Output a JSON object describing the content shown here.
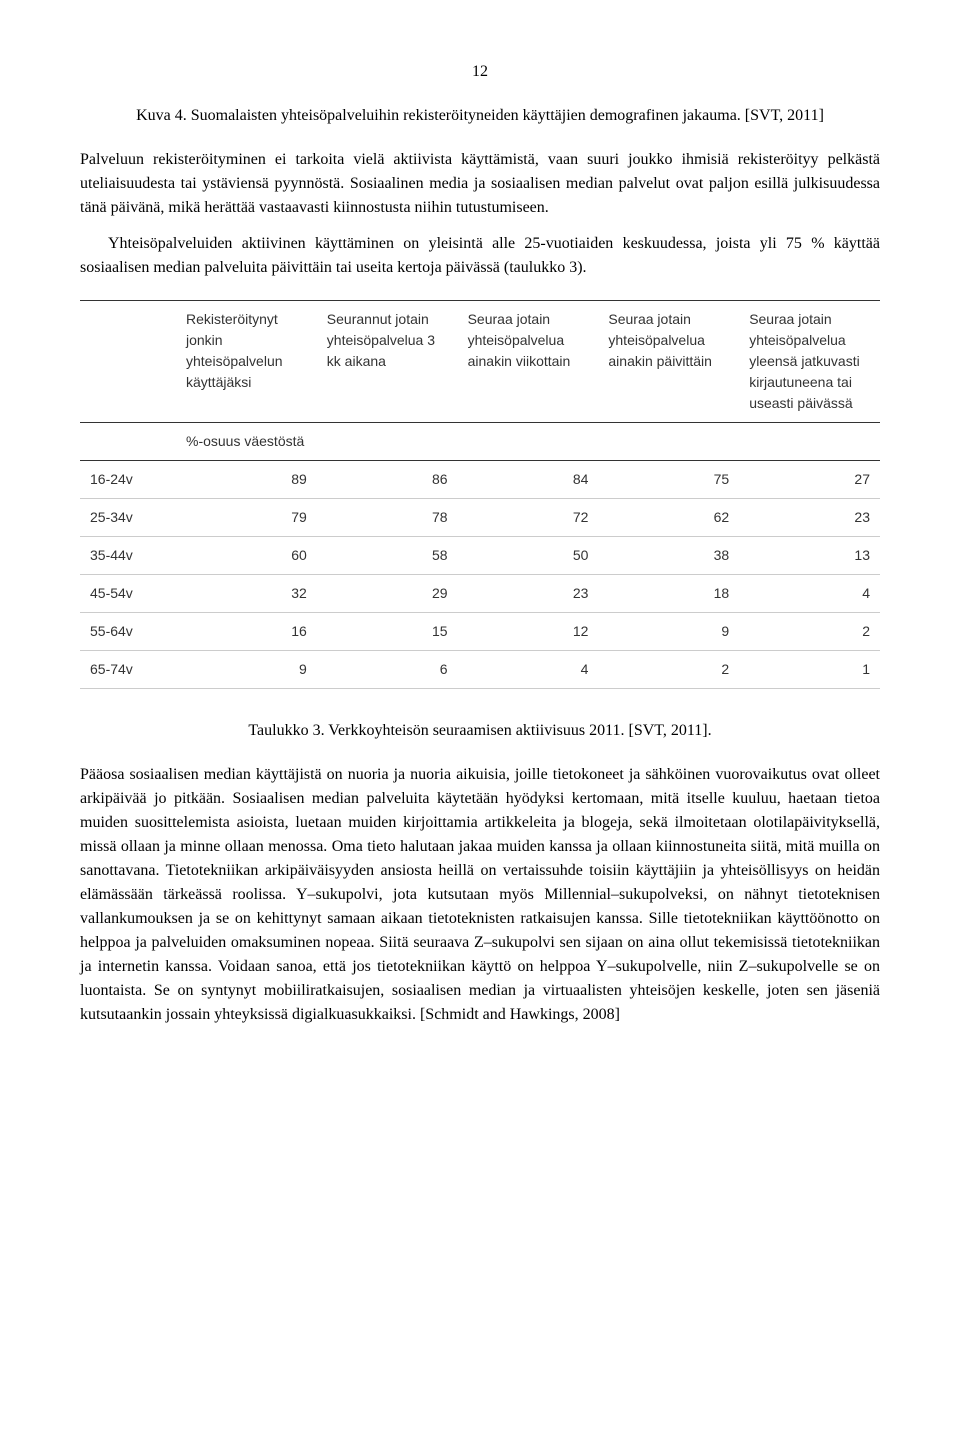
{
  "page_number": "12",
  "figure_caption": "Kuva 4. Suomalaisten yhteisöpalveluihin rekisteröityneiden käyttäjien demografinen jakauma. [SVT, 2011]",
  "paragraph1": "Palveluun rekisteröityminen ei tarkoita vielä aktiivista käyttämistä, vaan suuri joukko ihmisiä rekisteröityy pelkästä uteliaisuudesta tai ystäviensä pyynnöstä. Sosiaalinen media ja sosiaalisen median palvelut ovat paljon esillä julkisuudessa tänä päivänä, mikä herättää vastaavasti kiinnostusta niihin tutustumiseen.",
  "paragraph2": "Yhteisöpalveluiden aktiivinen käyttäminen on yleisintä alle 25-vuotiaiden keskuudessa, joista yli 75 % käyttää sosiaalisen median palveluita päivittäin tai useita kertoja päivässä (taulukko 3).",
  "table": {
    "columns": [
      "",
      "Rekisteröitynyt jonkin yhteisöpalvelun käyttäjäksi",
      "Seurannut jotain yhteisöpalvelua 3 kk aikana",
      "Seuraa jotain yhteisöpalvelua ainakin viikottain",
      "Seuraa jotain yhteisöpalvelua ainakin päivittäin",
      "Seuraa jotain yhteisöpalvelua yleensä jatkuvasti kirjautuneena tai useasti päivässä"
    ],
    "subheader": "%-osuus väestöstä",
    "rows": [
      {
        "label": "16-24v",
        "v": [
          "89",
          "86",
          "84",
          "75",
          "27"
        ]
      },
      {
        "label": "25-34v",
        "v": [
          "79",
          "78",
          "72",
          "62",
          "23"
        ]
      },
      {
        "label": "35-44v",
        "v": [
          "60",
          "58",
          "50",
          "38",
          "13"
        ]
      },
      {
        "label": "45-54v",
        "v": [
          "32",
          "29",
          "23",
          "18",
          "4"
        ]
      },
      {
        "label": "55-64v",
        "v": [
          "16",
          "15",
          "12",
          "9",
          "2"
        ]
      },
      {
        "label": "65-74v",
        "v": [
          "9",
          "6",
          "4",
          "2",
          "1"
        ]
      }
    ],
    "col_widths": [
      "12%",
      "17.6%",
      "17.6%",
      "17.6%",
      "17.6%",
      "17.6%"
    ],
    "header_border_color": "#333333",
    "row_border_color": "#cccccc",
    "font_family": "Arial",
    "font_size_pt": 11
  },
  "table_caption": "Taulukko 3. Verkkoyhteisön seuraamisen aktiivisuus 2011. [SVT, 2011].",
  "paragraph3": "Pääosa sosiaalisen median käyttäjistä on nuoria ja nuoria aikuisia, joille tietokoneet ja sähköinen vuorovaikutus ovat olleet arkipäivää jo pitkään. Sosiaalisen median palveluita käytetään hyödyksi kertomaan, mitä itselle kuuluu, haetaan tietoa muiden suosittelemista asioista, luetaan muiden kirjoittamia artikkeleita ja blogeja, sekä ilmoitetaan olotilapäivityksellä, missä ollaan ja minne ollaan menossa. Oma tieto halutaan jakaa muiden kanssa ja ollaan kiinnostuneita siitä, mitä muilla on sanottavana. Tietotekniikan arkipäiväisyyden ansiosta heillä on vertaissuhde toisiin käyttäjiin ja yhteisöllisyys on heidän elämässään tärkeässä roolissa. Y–sukupolvi, jota kutsutaan myös Millennial–sukupolveksi, on nähnyt tietoteknisen vallankumouksen ja se on kehittynyt samaan aikaan tietoteknisten ratkaisujen kanssa. Sille tietotekniikan käyttöönotto on helppoa ja palveluiden omaksuminen nopeaa. Siitä seuraava Z–sukupolvi sen sijaan on aina ollut tekemisissä tietotekniikan ja internetin kanssa. Voidaan sanoa, että jos tietotekniikan käyttö on helppoa Y–sukupolvelle, niin Z–sukupolvelle se on luontaista. Se on syntynyt mobiiliratkaisujen, sosiaalisen median ja virtuaalisten yhteisöjen keskelle, joten sen jäseniä kutsutaankin jossain yhteyksissä digialkuasukkaiksi. [Schmidt and Hawkings, 2008]"
}
